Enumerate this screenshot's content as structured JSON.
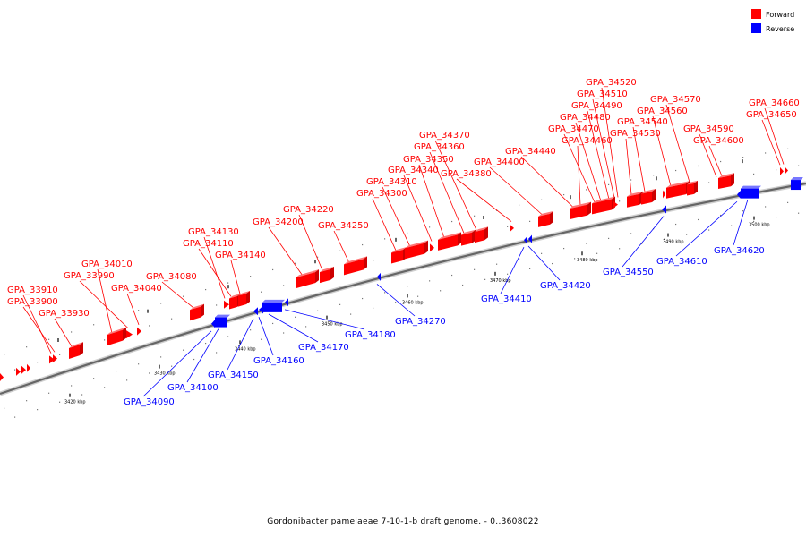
{
  "caption": "Gordonibacter pamelaeae 7-10-1-b draft genome. - 0..3608022",
  "legend": {
    "forward": {
      "label": "Forward",
      "color": "#ff0000"
    },
    "reverse": {
      "label": "Reverse",
      "color": "#0000ff"
    }
  },
  "colors": {
    "forward": "#ff0000",
    "reverse": "#0000ff",
    "backbone": "#666666"
  },
  "chart_data": {
    "type": "genome-map",
    "ticks": [
      "3420 kbp",
      "3430 kbp",
      "3440 kbp",
      "3450 kbp",
      "3460 kbp",
      "3470 kbp",
      "3480 kbp",
      "3490 kbp",
      "3500 kbp"
    ],
    "genes": [
      {
        "name": "GPA_33910",
        "strand": "forward"
      },
      {
        "name": "GPA_33900",
        "strand": "forward"
      },
      {
        "name": "GPA_33930",
        "strand": "forward"
      },
      {
        "name": "GPA_34010",
        "strand": "forward"
      },
      {
        "name": "GPA_33990",
        "strand": "forward"
      },
      {
        "name": "GPA_34040",
        "strand": "forward"
      },
      {
        "name": "GPA_34080",
        "strand": "forward"
      },
      {
        "name": "GPA_34130",
        "strand": "forward"
      },
      {
        "name": "GPA_34110",
        "strand": "forward"
      },
      {
        "name": "GPA_34140",
        "strand": "forward"
      },
      {
        "name": "GPA_34200",
        "strand": "forward"
      },
      {
        "name": "GPA_34220",
        "strand": "forward"
      },
      {
        "name": "GPA_34250",
        "strand": "forward"
      },
      {
        "name": "GPA_34300",
        "strand": "forward"
      },
      {
        "name": "GPA_34310",
        "strand": "forward"
      },
      {
        "name": "GPA_34340",
        "strand": "forward"
      },
      {
        "name": "GPA_34350",
        "strand": "forward"
      },
      {
        "name": "GPA_34360",
        "strand": "forward"
      },
      {
        "name": "GPA_34370",
        "strand": "forward"
      },
      {
        "name": "GPA_34380",
        "strand": "forward"
      },
      {
        "name": "GPA_34400",
        "strand": "forward"
      },
      {
        "name": "GPA_34440",
        "strand": "forward"
      },
      {
        "name": "GPA_34460",
        "strand": "forward"
      },
      {
        "name": "GPA_34470",
        "strand": "forward"
      },
      {
        "name": "GPA_34480",
        "strand": "forward"
      },
      {
        "name": "GPA_34490",
        "strand": "forward"
      },
      {
        "name": "GPA_34510",
        "strand": "forward"
      },
      {
        "name": "GPA_34520",
        "strand": "forward"
      },
      {
        "name": "GPA_34530",
        "strand": "forward"
      },
      {
        "name": "GPA_34540",
        "strand": "forward"
      },
      {
        "name": "GPA_34560",
        "strand": "forward"
      },
      {
        "name": "GPA_34570",
        "strand": "forward"
      },
      {
        "name": "GPA_34590",
        "strand": "forward"
      },
      {
        "name": "GPA_34600",
        "strand": "forward"
      },
      {
        "name": "GPA_34650",
        "strand": "forward"
      },
      {
        "name": "GPA_34660",
        "strand": "forward"
      },
      {
        "name": "GPA_34090",
        "strand": "reverse"
      },
      {
        "name": "GPA_34100",
        "strand": "reverse"
      },
      {
        "name": "GPA_34150",
        "strand": "reverse"
      },
      {
        "name": "GPA_34160",
        "strand": "reverse"
      },
      {
        "name": "GPA_34170",
        "strand": "reverse"
      },
      {
        "name": "GPA_34180",
        "strand": "reverse"
      },
      {
        "name": "GPA_34270",
        "strand": "reverse"
      },
      {
        "name": "GPA_34410",
        "strand": "reverse"
      },
      {
        "name": "GPA_34420",
        "strand": "reverse"
      },
      {
        "name": "GPA_34550",
        "strand": "reverse"
      },
      {
        "name": "GPA_34610",
        "strand": "reverse"
      },
      {
        "name": "GPA_34620",
        "strand": "reverse"
      }
    ]
  }
}
